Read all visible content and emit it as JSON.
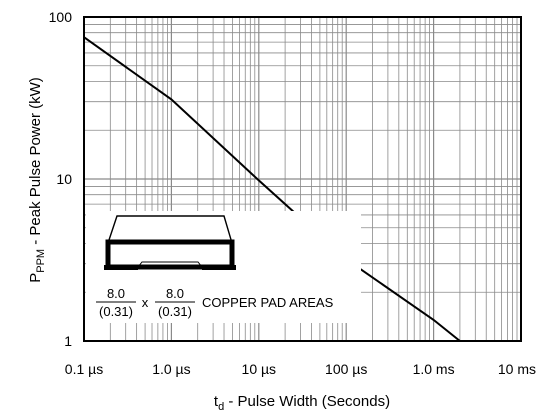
{
  "chart_data": {
    "type": "line",
    "title": "",
    "xlabel": {
      "main": "t",
      "sub": "d",
      "rest": " - Pulse Width (Seconds)"
    },
    "ylabel": {
      "main": "P",
      "sub": "PPM",
      "rest": " - Peak Pulse Power (kW)"
    },
    "x_scale": "log",
    "y_scale": "log",
    "xlim": [
      "0.1 µs",
      "10 ms"
    ],
    "ylim": [
      1,
      100
    ],
    "x_ticks": [
      "0.1 µs",
      "1.0 µs",
      "10 µs",
      "100 µs",
      "1.0 ms",
      "10 ms"
    ],
    "y_ticks": [
      "1",
      "10",
      "100"
    ],
    "grid": true,
    "series": [
      {
        "x": [
          "0.1 µs",
          "1.0 µs",
          "10 µs",
          "100 µs",
          "1.0 ms",
          "2 ms"
        ],
        "y": [
          75,
          31,
          9.8,
          3.2,
          1.35,
          1.0
        ]
      }
    ],
    "annotation": {
      "frac1_num": "8.0",
      "frac1_den": "(0.31)",
      "times": "x",
      "frac2_num": "8.0",
      "frac2_den": "(0.31)",
      "label": "COPPER PAD AREAS"
    }
  }
}
